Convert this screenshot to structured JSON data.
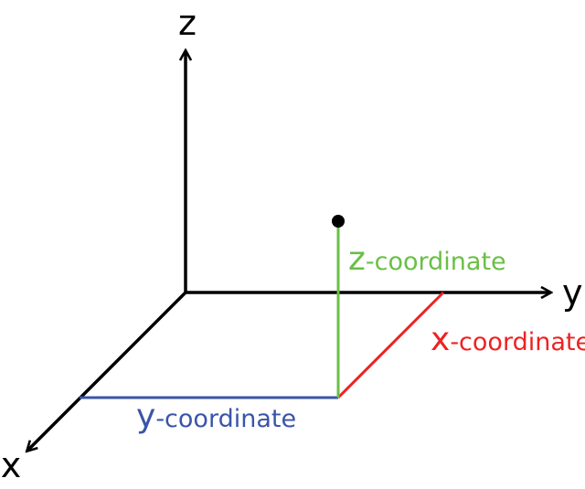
{
  "axes": {
    "x_label": "x",
    "y_label": "y",
    "z_label": "z"
  },
  "coordinate_labels": {
    "x": {
      "letter": "x",
      "rest": "-coordinate"
    },
    "y": {
      "letter": "y",
      "rest": "-coordinate"
    },
    "z": {
      "letter": "z",
      "rest": "-coordinate"
    }
  },
  "colors": {
    "axes": "#000000",
    "x_coordinate": "#ee2222",
    "y_coordinate": "#3a55a8",
    "z_coordinate": "#6abf45",
    "point": "#000000"
  }
}
